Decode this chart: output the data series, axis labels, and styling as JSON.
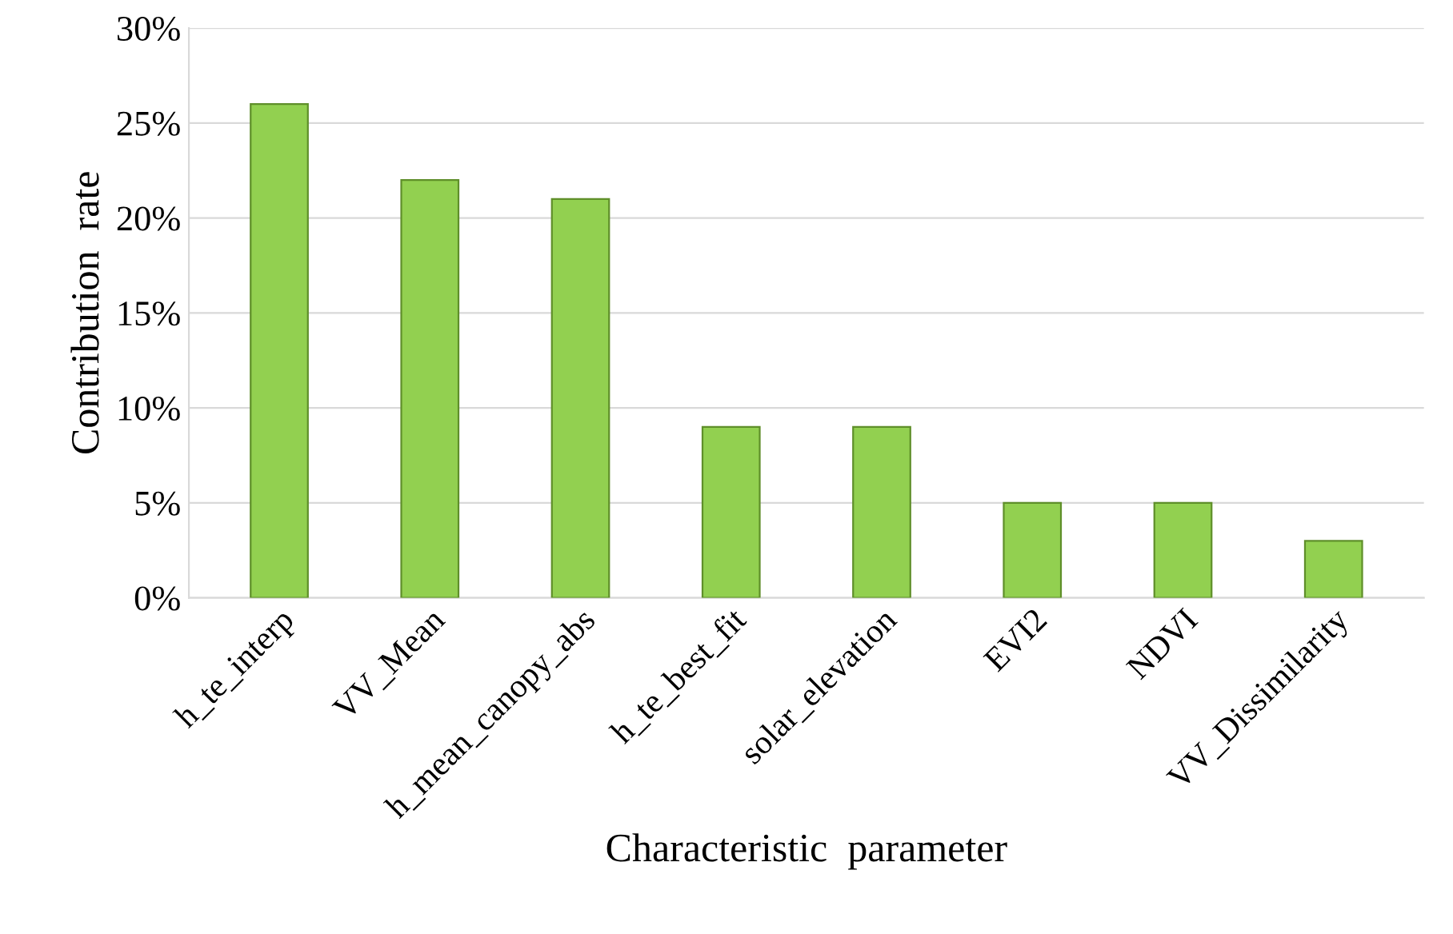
{
  "chart_data": {
    "type": "bar",
    "xlabel": "Characteristic  parameter",
    "ylabel": "Contribution  rate",
    "categories": [
      "h_te_interp",
      "VV_Mean",
      "h_mean_canopy_abs",
      "h_te_best_fit",
      "solar_elevation",
      "EVI2",
      "NDVI",
      "VV_Dissimilarity"
    ],
    "values": [
      26,
      22,
      21,
      9,
      9,
      5,
      5,
      3
    ],
    "color": "#92d050",
    "ylim": [
      0,
      30
    ],
    "yticks": [
      {
        "value": 0,
        "label": "0%"
      },
      {
        "value": 5,
        "label": "5%"
      },
      {
        "value": 10,
        "label": "10%"
      },
      {
        "value": 15,
        "label": "15%"
      },
      {
        "value": 20,
        "label": "20%"
      },
      {
        "value": 25,
        "label": "25%"
      },
      {
        "value": 30,
        "label": "30%"
      }
    ],
    "grid": "y",
    "legend": false
  }
}
